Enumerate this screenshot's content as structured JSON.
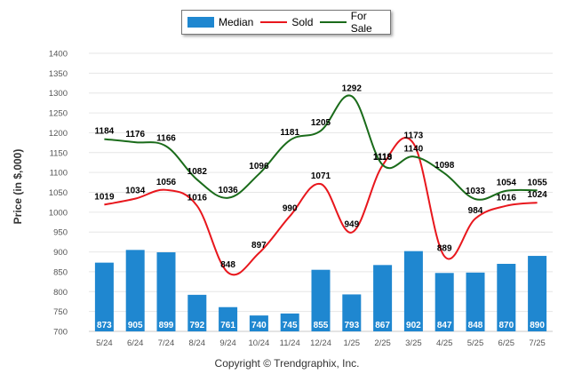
{
  "legend": {
    "median_label": "Median",
    "sold_label": "Sold",
    "forsale_label": "For Sale"
  },
  "colors": {
    "median": "#1f87d0",
    "sold": "#e8171d",
    "forsale": "#1a6b1a"
  },
  "footer": {
    "copyright": "Copyright © Trendgraphix, Inc."
  },
  "chart_data": {
    "type": "bar",
    "title": "",
    "xlabel": "",
    "ylabel": "Price (in $,000)",
    "ylim": [
      700,
      1400
    ],
    "yticks": [
      700,
      750,
      800,
      850,
      900,
      950,
      1000,
      1050,
      1100,
      1150,
      1200,
      1250,
      1300,
      1350,
      1400
    ],
    "grid": true,
    "legend_position": "top-center",
    "categories": [
      "5/24",
      "6/24",
      "7/24",
      "8/24",
      "9/24",
      "10/24",
      "11/24",
      "12/24",
      "1/25",
      "2/25",
      "3/25",
      "4/25",
      "5/25",
      "6/25",
      "7/25"
    ],
    "series": [
      {
        "name": "Median",
        "type": "bar",
        "values": [
          873,
          905,
          899,
          792,
          761,
          740,
          745,
          855,
          793,
          867,
          902,
          847,
          848,
          870,
          890
        ]
      },
      {
        "name": "Sold",
        "type": "line",
        "values": [
          1019,
          1034,
          1056,
          1016,
          848,
          897,
          990,
          1071,
          949,
          1118,
          1173,
          889,
          984,
          1016,
          1024
        ]
      },
      {
        "name": "For Sale",
        "type": "line",
        "values": [
          1184,
          1176,
          1166,
          1082,
          1036,
          1096,
          1181,
          1205,
          1292,
          1119,
          1140,
          1098,
          1033,
          1054,
          1055
        ]
      }
    ]
  }
}
